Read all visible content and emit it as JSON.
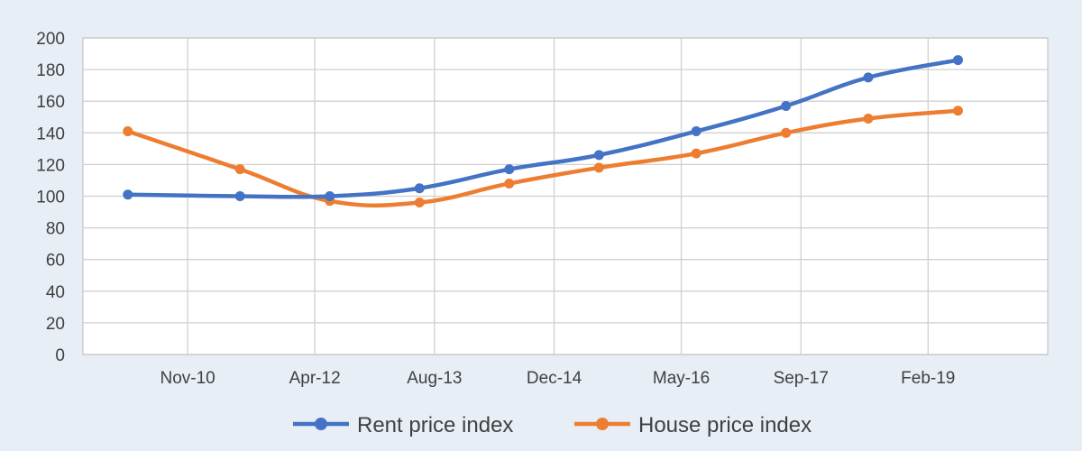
{
  "chart_data": {
    "type": "line",
    "x_range": [
      "Sep-09",
      "Jun-20"
    ],
    "ylim": [
      0,
      200
    ],
    "y_step": 20,
    "y_ticks": [
      "0",
      "20",
      "40",
      "60",
      "80",
      "100",
      "120",
      "140",
      "160",
      "180",
      "200"
    ],
    "x_ticks": [
      "Nov-10",
      "Apr-12",
      "Aug-13",
      "Dec-14",
      "May-16",
      "Sep-17",
      "Feb-19"
    ],
    "grid": true,
    "legend_position": "bottom",
    "series": [
      {
        "name": "Rent price index",
        "color": "#4472c4",
        "points": [
          {
            "x": "Mar-10",
            "y": 101
          },
          {
            "x": "Jun-11",
            "y": 100
          },
          {
            "x": "Jun-12",
            "y": 100
          },
          {
            "x": "Jun-13",
            "y": 105
          },
          {
            "x": "Jun-14",
            "y": 117
          },
          {
            "x": "Jun-15",
            "y": 126
          },
          {
            "x": "Jul-16",
            "y": 141
          },
          {
            "x": "Jul-17",
            "y": 157
          },
          {
            "x": "Jun-18",
            "y": 175
          },
          {
            "x": "Jun-19",
            "y": 186
          }
        ]
      },
      {
        "name": "House price index",
        "color": "#ed7d31",
        "points": [
          {
            "x": "Mar-10",
            "y": 141
          },
          {
            "x": "Jun-11",
            "y": 117
          },
          {
            "x": "Jun-12",
            "y": 97
          },
          {
            "x": "Jun-13",
            "y": 96
          },
          {
            "x": "Jun-14",
            "y": 108
          },
          {
            "x": "Jun-15",
            "y": 118
          },
          {
            "x": "Jul-16",
            "y": 127
          },
          {
            "x": "Jul-17",
            "y": 140
          },
          {
            "x": "Jun-18",
            "y": 149
          },
          {
            "x": "Jun-19",
            "y": 154
          }
        ]
      }
    ]
  }
}
